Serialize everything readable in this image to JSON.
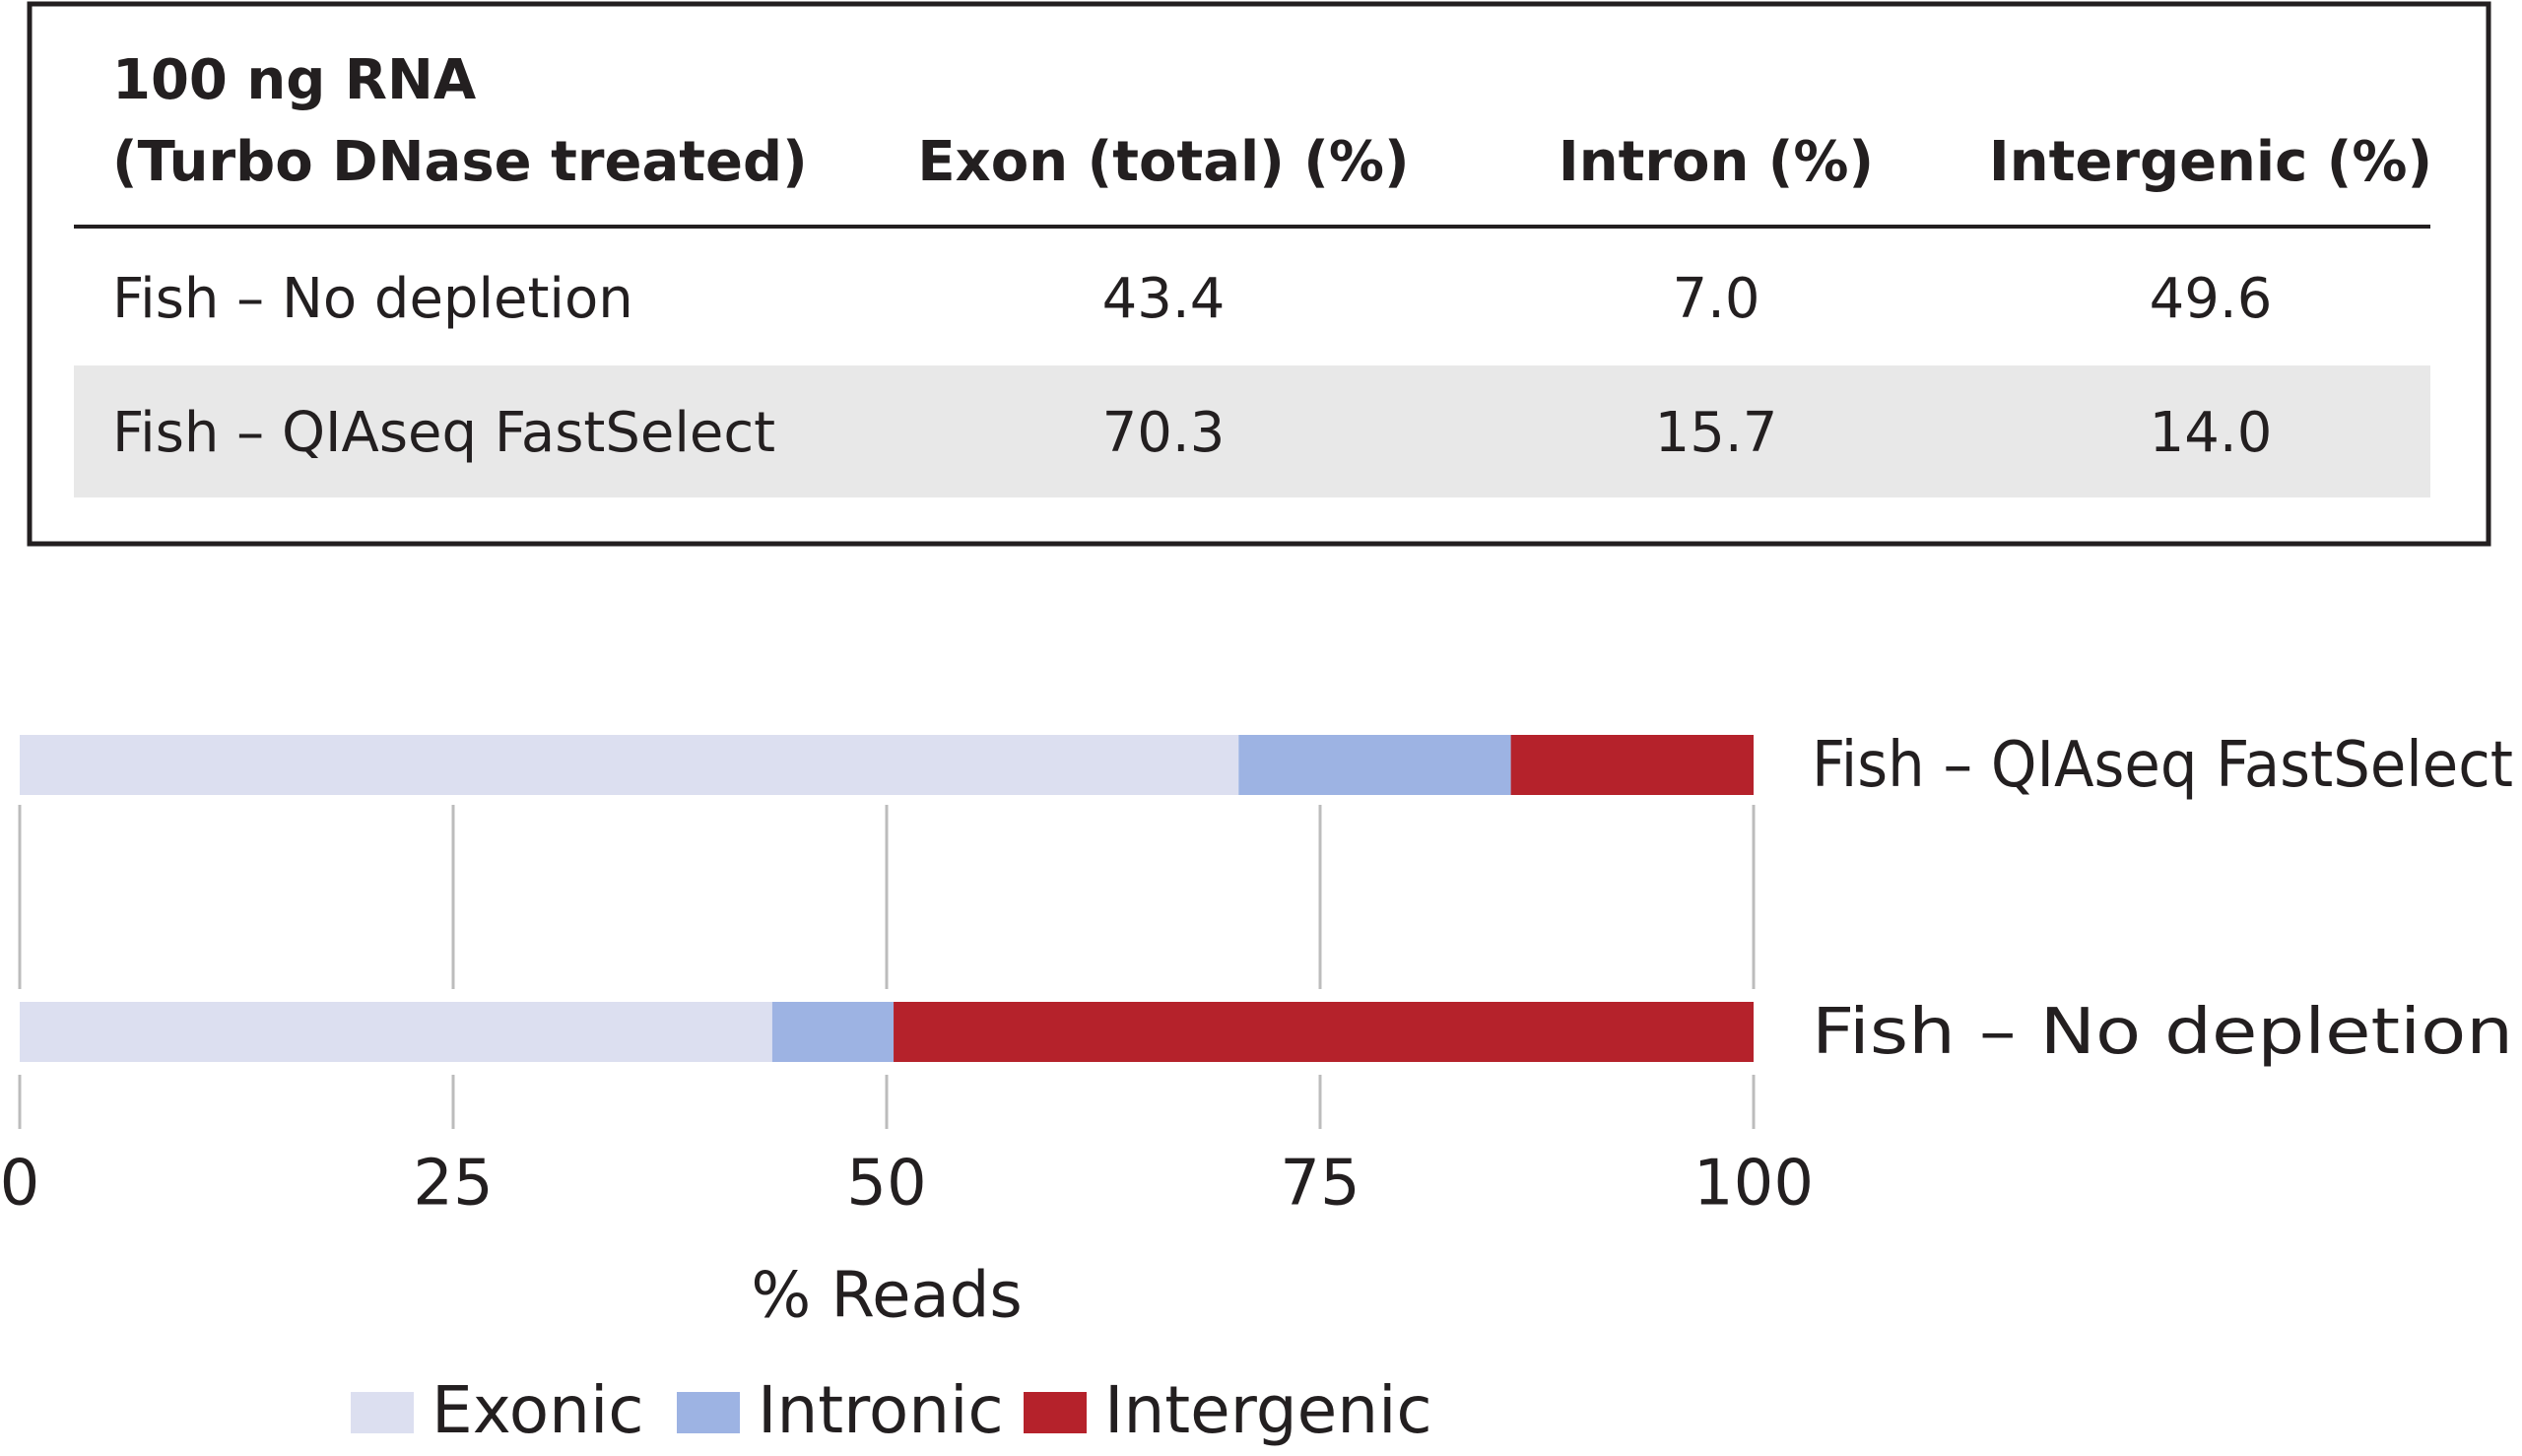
{
  "table": {
    "header": [
      [
        "100 ng RNA",
        "(Turbo DNase treated)"
      ],
      "Exon (total) (%)",
      "Intron (%)",
      "Intergenic (%)"
    ],
    "rows": [
      [
        "Fish – No depletion",
        "43.4",
        "7.0",
        "49.6"
      ],
      [
        "Fish – QIAseq FastSelect",
        "70.3",
        "15.7",
        "14.0"
      ]
    ]
  },
  "chart_data": {
    "type": "bar",
    "orientation": "horizontal",
    "stacked": true,
    "categories": [
      "Fish – QIAseq FastSelect",
      "Fish – No depletion"
    ],
    "series": [
      {
        "name": "Exonic",
        "color": "#dcdff0",
        "values": [
          70.3,
          43.4
        ]
      },
      {
        "name": "Intronic",
        "color": "#9db3e3",
        "values": [
          15.7,
          7.0
        ]
      },
      {
        "name": "Intergenic",
        "color": "#b5222b",
        "values": [
          14.0,
          49.6
        ]
      }
    ],
    "xlim": [
      0,
      100
    ],
    "xticks": [
      0,
      25,
      50,
      75,
      100
    ],
    "xlabel": "% Reads",
    "grid": true,
    "legend": "bottom"
  }
}
